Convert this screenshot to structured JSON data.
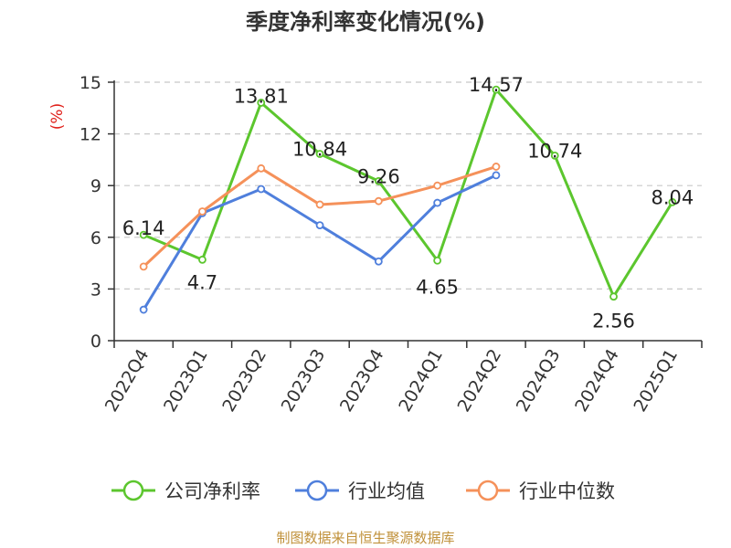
{
  "source_note": "制图数据来自恒生聚源数据库",
  "chart_data": {
    "type": "line",
    "title": "季度净利率变化情况(%)",
    "ylabel": "(%)",
    "xlabel": "",
    "ylim": [
      0,
      15
    ],
    "yticks": [
      0,
      3,
      6,
      9,
      12,
      15
    ],
    "grid": true,
    "legend_position": "bottom",
    "categories": [
      "2022Q4",
      "2023Q1",
      "2023Q2",
      "2023Q3",
      "2023Q4",
      "2024Q1",
      "2024Q2",
      "2024Q3",
      "2024Q4",
      "2025Q1"
    ],
    "series": [
      {
        "name": "公司净利率",
        "color": "#5cc62e",
        "values": [
          6.14,
          4.7,
          13.81,
          10.84,
          9.26,
          4.65,
          14.57,
          10.74,
          2.56,
          8.04
        ],
        "labels": [
          "6.14",
          "4.7",
          "13.81",
          "10.84",
          "9.26",
          "4.65",
          "14.57",
          "10.74",
          "2.56",
          "8.04"
        ]
      },
      {
        "name": "行业均值",
        "color": "#4f7fdc",
        "values": [
          1.8,
          7.4,
          8.8,
          6.7,
          4.6,
          8.0,
          9.6,
          null,
          null,
          null
        ]
      },
      {
        "name": "行业中位数",
        "color": "#f5915a",
        "values": [
          4.3,
          7.5,
          10.0,
          7.9,
          8.1,
          9.0,
          10.1,
          null,
          null,
          null
        ]
      }
    ]
  }
}
